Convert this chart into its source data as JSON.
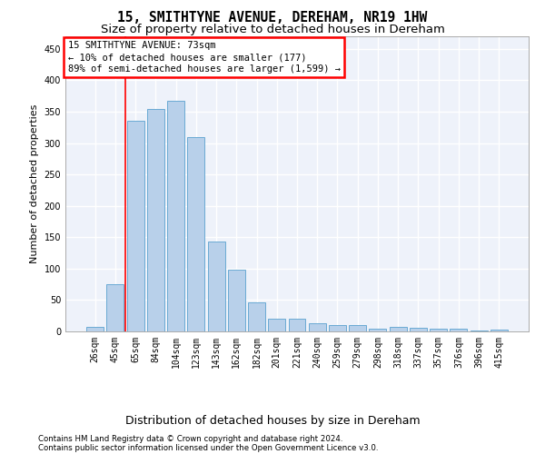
{
  "title": "15, SMITHTYNE AVENUE, DEREHAM, NR19 1HW",
  "subtitle": "Size of property relative to detached houses in Dereham",
  "xlabel_bottom": "Distribution of detached houses by size in Dereham",
  "ylabel": "Number of detached properties",
  "footer_line1": "Contains HM Land Registry data © Crown copyright and database right 2024.",
  "footer_line2": "Contains public sector information licensed under the Open Government Licence v3.0.",
  "categories": [
    "26sqm",
    "45sqm",
    "65sqm",
    "84sqm",
    "104sqm",
    "123sqm",
    "143sqm",
    "162sqm",
    "182sqm",
    "201sqm",
    "221sqm",
    "240sqm",
    "259sqm",
    "279sqm",
    "298sqm",
    "318sqm",
    "337sqm",
    "357sqm",
    "376sqm",
    "396sqm",
    "415sqm"
  ],
  "values": [
    7,
    75,
    335,
    355,
    368,
    310,
    143,
    99,
    46,
    20,
    20,
    13,
    10,
    10,
    4,
    7,
    6,
    5,
    4,
    1,
    3
  ],
  "bar_color": "#b8d0ea",
  "bar_edge_color": "#6aaad4",
  "bar_edge_width": 0.7,
  "annotation_text_line1": "15 SMITHTYNE AVENUE: 73sqm",
  "annotation_text_line2": "← 10% of detached houses are smaller (177)",
  "annotation_text_line3": "89% of semi-detached houses are larger (1,599) →",
  "annotation_box_color": "red",
  "property_line_x": 1.5,
  "ylim": [
    0,
    470
  ],
  "yticks": [
    0,
    50,
    100,
    150,
    200,
    250,
    300,
    350,
    400,
    450
  ],
  "background_color": "#eef2fa",
  "grid_color": "#ffffff",
  "title_fontsize": 10.5,
  "subtitle_fontsize": 9.5,
  "ylabel_fontsize": 8,
  "tick_fontsize": 7,
  "annotation_fontsize": 7.5,
  "footer_fontsize": 6.2,
  "xlabel_bottom_fontsize": 9
}
